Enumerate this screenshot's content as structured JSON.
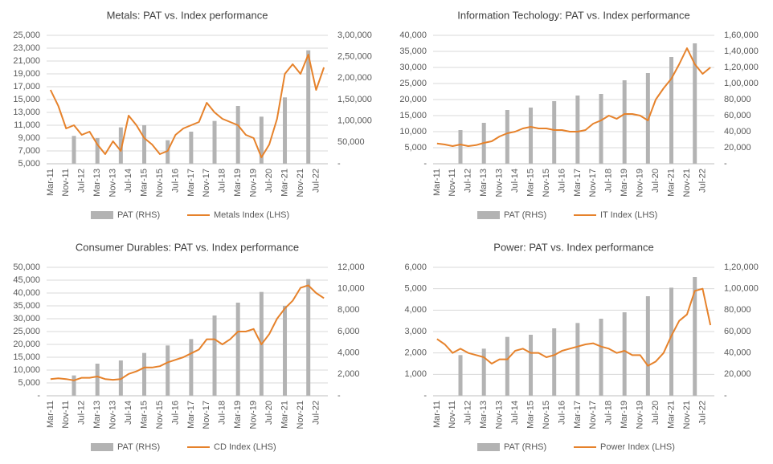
{
  "chart_data": [
    {
      "type": "combo",
      "title": "Metals: PAT vs. Index performance",
      "categories": [
        "Mar-11",
        null,
        "Nov-11",
        null,
        "Jul-12",
        null,
        "Mar-13",
        null,
        "Nov-13",
        null,
        "Jul-14",
        null,
        "Mar-15",
        null,
        "Nov-15",
        null,
        "Jul-16",
        null,
        "Mar-17",
        null,
        "Nov-17",
        null,
        "Jul-18",
        null,
        "Mar-19",
        null,
        "Nov-19",
        null,
        "Jul-20",
        null,
        "Mar-21",
        null,
        "Nov-21",
        null,
        "Jul-22",
        null
      ],
      "series": [
        {
          "name": "PAT (RHS)",
          "type": "bar",
          "axis": "y2",
          "color": "#b3b3b3",
          "values": [
            null,
            null,
            null,
            65000,
            null,
            null,
            60000,
            null,
            null,
            85000,
            null,
            null,
            90000,
            null,
            null,
            55000,
            null,
            null,
            75000,
            null,
            null,
            100000,
            null,
            null,
            135000,
            null,
            null,
            110000,
            null,
            null,
            155000,
            null,
            null,
            265000,
            null,
            null
          ]
        },
        {
          "name": "Metals Index (LHS)",
          "type": "line",
          "color": "#e6822b",
          "values": [
            16500,
            14000,
            10500,
            11000,
            9500,
            10000,
            8000,
            6500,
            8500,
            7000,
            12500,
            11000,
            9000,
            8000,
            6500,
            7000,
            9500,
            10500,
            11000,
            11500,
            14500,
            13000,
            12000,
            11500,
            11000,
            9500,
            9000,
            6000,
            8000,
            12000,
            19000,
            20500,
            19000,
            22000,
            16500,
            20000
          ]
        }
      ],
      "ylim": [
        5000,
        25000
      ],
      "yticks": [
        {
          "value": 5000,
          "label": "5,000"
        },
        {
          "value": 7000,
          "label": "7,000"
        },
        {
          "value": 9000,
          "label": "9,000"
        },
        {
          "value": 11000,
          "label": "11,000"
        },
        {
          "value": 13000,
          "label": "13,000"
        },
        {
          "value": 15000,
          "label": "15,000"
        },
        {
          "value": 17000,
          "label": "17,000"
        },
        {
          "value": 19000,
          "label": "19,000"
        },
        {
          "value": 21000,
          "label": "21,000"
        },
        {
          "value": 23000,
          "label": "23,000"
        },
        {
          "value": 25000,
          "label": "25,000"
        }
      ],
      "y2lim": [
        0,
        300000
      ],
      "y2ticks": [
        {
          "value": 0,
          "label": "-"
        },
        {
          "value": 50000,
          "label": "50,000"
        },
        {
          "value": 100000,
          "label": "1,00,000"
        },
        {
          "value": 150000,
          "label": "1,50,000"
        },
        {
          "value": 200000,
          "label": "2,00,000"
        },
        {
          "value": 250000,
          "label": "2,50,000"
        },
        {
          "value": 300000,
          "label": "3,00,000"
        }
      ],
      "grid": true
    },
    {
      "type": "combo",
      "title": "Information Techology: PAT vs. Index performance",
      "categories": [
        "Mar-11",
        null,
        "Nov-11",
        null,
        "Jul-12",
        null,
        "Mar-13",
        null,
        "Nov-13",
        null,
        "Jul-14",
        null,
        "Mar-15",
        null,
        "Nov-15",
        null,
        "Jul-16",
        null,
        "Mar-17",
        null,
        "Nov-17",
        null,
        "Jul-18",
        null,
        "Mar-19",
        null,
        "Nov-19",
        null,
        "Jul-20",
        null,
        "Mar-21",
        null,
        "Nov-21",
        null,
        "Jul-22",
        null
      ],
      "series": [
        {
          "name": "PAT (RHS)",
          "type": "bar",
          "axis": "y2",
          "color": "#b3b3b3",
          "values": [
            null,
            null,
            null,
            42000,
            null,
            null,
            51000,
            null,
            null,
            67000,
            null,
            null,
            70000,
            null,
            null,
            78000,
            null,
            null,
            85000,
            null,
            null,
            87000,
            null,
            null,
            104000,
            null,
            null,
            113000,
            null,
            null,
            133000,
            null,
            null,
            150000,
            null,
            null
          ]
        },
        {
          "name": "IT Index (LHS)",
          "type": "line",
          "color": "#e6822b",
          "values": [
            6300,
            6000,
            5500,
            6000,
            5500,
            5800,
            6500,
            7000,
            8500,
            9500,
            10000,
            11000,
            11500,
            11000,
            11000,
            10500,
            10500,
            10000,
            10000,
            10500,
            12500,
            13500,
            15000,
            14000,
            15500,
            15500,
            15000,
            13500,
            20000,
            23500,
            26500,
            31000,
            36000,
            31000,
            28000,
            30000
          ]
        }
      ],
      "ylim": [
        0,
        40000
      ],
      "yticks": [
        {
          "value": 0,
          "label": "-"
        },
        {
          "value": 5000,
          "label": "5,000"
        },
        {
          "value": 10000,
          "label": "10,000"
        },
        {
          "value": 15000,
          "label": "15,000"
        },
        {
          "value": 20000,
          "label": "20,000"
        },
        {
          "value": 25000,
          "label": "25,000"
        },
        {
          "value": 30000,
          "label": "30,000"
        },
        {
          "value": 35000,
          "label": "35,000"
        },
        {
          "value": 40000,
          "label": "40,000"
        }
      ],
      "y2lim": [
        0,
        160000
      ],
      "y2ticks": [
        {
          "value": 0,
          "label": "-"
        },
        {
          "value": 20000,
          "label": "20,000"
        },
        {
          "value": 40000,
          "label": "40,000"
        },
        {
          "value": 60000,
          "label": "60,000"
        },
        {
          "value": 80000,
          "label": "80,000"
        },
        {
          "value": 100000,
          "label": "1,00,000"
        },
        {
          "value": 120000,
          "label": "1,20,000"
        },
        {
          "value": 140000,
          "label": "1,40,000"
        },
        {
          "value": 160000,
          "label": "1,60,000"
        }
      ],
      "grid": true
    },
    {
      "type": "combo",
      "title": "Consumer Durables: PAT vs. Index performance",
      "categories": [
        "Mar-11",
        null,
        "Nov-11",
        null,
        "Jul-12",
        null,
        "Mar-13",
        null,
        "Nov-13",
        null,
        "Jul-14",
        null,
        "Mar-15",
        null,
        "Nov-15",
        null,
        "Jul-16",
        null,
        "Mar-17",
        null,
        "Nov-17",
        null,
        "Jul-18",
        null,
        "Mar-19",
        null,
        "Nov-19",
        null,
        "Jul-20",
        null,
        "Mar-21",
        null,
        "Nov-21",
        null,
        "Jul-22",
        null
      ],
      "series": [
        {
          "name": "PAT (RHS)",
          "type": "bar",
          "axis": "y2",
          "color": "#b3b3b3",
          "values": [
            null,
            null,
            null,
            1900,
            null,
            null,
            3000,
            null,
            null,
            3300,
            null,
            null,
            4000,
            null,
            null,
            4700,
            null,
            null,
            5300,
            null,
            null,
            7500,
            null,
            null,
            8700,
            null,
            null,
            9700,
            null,
            null,
            8400,
            null,
            null,
            10900,
            null,
            null
          ]
        },
        {
          "name": "CD Index (LHS)",
          "type": "line",
          "color": "#e6822b",
          "values": [
            6500,
            6800,
            6500,
            6000,
            7000,
            7000,
            7500,
            6500,
            6200,
            6500,
            8500,
            9500,
            11000,
            11000,
            11500,
            13000,
            14000,
            15000,
            16500,
            18000,
            22000,
            22000,
            20000,
            22000,
            25000,
            25000,
            26000,
            20000,
            24000,
            30000,
            34000,
            37000,
            42000,
            43000,
            40000,
            38000
          ]
        }
      ],
      "ylim": [
        0,
        50000
      ],
      "yticks": [
        {
          "value": 0,
          "label": "-"
        },
        {
          "value": 5000,
          "label": "5,000"
        },
        {
          "value": 10000,
          "label": "10,000"
        },
        {
          "value": 15000,
          "label": "15,000"
        },
        {
          "value": 20000,
          "label": "20,000"
        },
        {
          "value": 25000,
          "label": "25,000"
        },
        {
          "value": 30000,
          "label": "30,000"
        },
        {
          "value": 35000,
          "label": "35,000"
        },
        {
          "value": 40000,
          "label": "40,000"
        },
        {
          "value": 45000,
          "label": "45,000"
        },
        {
          "value": 50000,
          "label": "50,000"
        }
      ],
      "y2lim": [
        0,
        12000
      ],
      "y2ticks": [
        {
          "value": 0,
          "label": "-"
        },
        {
          "value": 2000,
          "label": "2,000"
        },
        {
          "value": 4000,
          "label": "4,000"
        },
        {
          "value": 6000,
          "label": "6,000"
        },
        {
          "value": 8000,
          "label": "8,000"
        },
        {
          "value": 10000,
          "label": "10,000"
        },
        {
          "value": 12000,
          "label": "12,000"
        }
      ],
      "grid": true
    },
    {
      "type": "combo",
      "title": "Power: PAT vs. Index performance",
      "categories": [
        "Mar-11",
        null,
        "Nov-11",
        null,
        "Jul-12",
        null,
        "Mar-13",
        null,
        "Nov-13",
        null,
        "Jul-14",
        null,
        "Mar-15",
        null,
        "Nov-15",
        null,
        "Jul-16",
        null,
        "Mar-17",
        null,
        "Nov-17",
        null,
        "Jul-18",
        null,
        "Mar-19",
        null,
        "Nov-19",
        null,
        "Jul-20",
        null,
        "Mar-21",
        null,
        "Nov-21",
        null,
        "Jul-22",
        null
      ],
      "series": [
        {
          "name": "PAT (RHS)",
          "type": "bar",
          "axis": "y2",
          "color": "#b3b3b3",
          "values": [
            null,
            null,
            null,
            38000,
            null,
            null,
            44000,
            null,
            null,
            55000,
            null,
            null,
            57000,
            null,
            null,
            63000,
            null,
            null,
            68000,
            null,
            null,
            72000,
            null,
            null,
            78000,
            null,
            null,
            93000,
            null,
            null,
            101000,
            null,
            null,
            111000,
            null,
            null
          ]
        },
        {
          "name": "Power Index (LHS)",
          "type": "line",
          "color": "#e6822b",
          "values": [
            2650,
            2400,
            2000,
            2200,
            2000,
            1900,
            1800,
            1500,
            1700,
            1700,
            2100,
            2200,
            2000,
            2000,
            1800,
            1900,
            2100,
            2200,
            2300,
            2400,
            2450,
            2300,
            2200,
            2000,
            2100,
            1900,
            1900,
            1400,
            1600,
            2000,
            2800,
            3500,
            3800,
            4900,
            5000,
            3300
          ]
        }
      ],
      "ylim": [
        0,
        6000
      ],
      "yticks": [
        {
          "value": 0,
          "label": "-"
        },
        {
          "value": 1000,
          "label": "1,000"
        },
        {
          "value": 2000,
          "label": "2,000"
        },
        {
          "value": 3000,
          "label": "3,000"
        },
        {
          "value": 4000,
          "label": "4,000"
        },
        {
          "value": 5000,
          "label": "5,000"
        },
        {
          "value": 6000,
          "label": "6,000"
        }
      ],
      "y2lim": [
        0,
        120000
      ],
      "y2ticks": [
        {
          "value": 0,
          "label": "-"
        },
        {
          "value": 20000,
          "label": "20,000"
        },
        {
          "value": 40000,
          "label": "40,000"
        },
        {
          "value": 60000,
          "label": "60,000"
        },
        {
          "value": 80000,
          "label": "80,000"
        },
        {
          "value": 100000,
          "label": "1,00,000"
        },
        {
          "value": 120000,
          "label": "1,20,000"
        }
      ],
      "grid": true
    }
  ]
}
